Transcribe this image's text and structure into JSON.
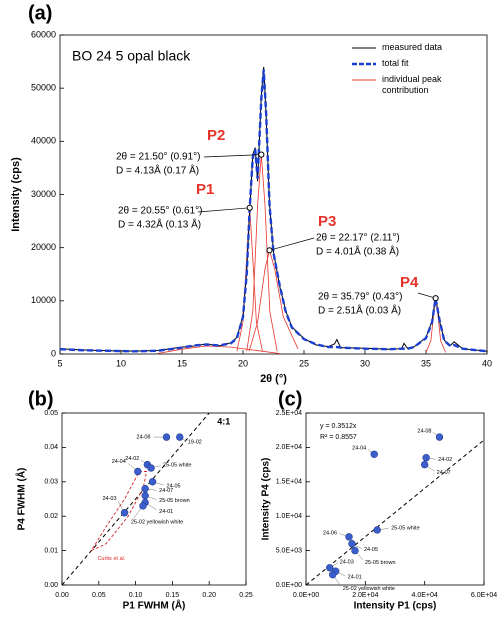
{
  "chart_data": [
    {
      "type": "line",
      "panel": "(a)",
      "title": "BO 24 5 opal black",
      "xlabel": "2θ (°)",
      "ylabel": "Intensity (cps)",
      "xlim": [
        5,
        40
      ],
      "ylim": [
        0,
        60000
      ],
      "xticks": [
        5,
        10,
        15,
        20,
        25,
        30,
        35,
        40
      ],
      "yticks": [
        0,
        10000,
        20000,
        30000,
        40000,
        50000,
        60000
      ],
      "x": [
        5,
        7,
        9,
        11,
        13,
        15,
        16,
        17,
        18,
        19,
        19.5,
        20,
        20.3,
        20.55,
        20.8,
        21,
        21.2,
        21.5,
        21.7,
        21.9,
        22.17,
        22.5,
        23,
        23.5,
        24,
        25,
        26,
        27,
        27.5,
        27.7,
        28,
        30,
        32,
        33,
        33.2,
        33.5,
        34,
        35,
        35.5,
        35.79,
        36.1,
        36.5,
        37,
        37.3,
        38,
        40
      ],
      "series": [
        {
          "name": "measured data",
          "color": "#000000",
          "values": [
            1000,
            750,
            600,
            550,
            650,
            1300,
            1500,
            1900,
            1500,
            2100,
            3100,
            7200,
            15500,
            27000,
            37500,
            38800,
            32500,
            48500,
            54000,
            44500,
            28200,
            19200,
            12800,
            8100,
            5100,
            2900,
            1700,
            1400,
            1900,
            2700,
            1200,
            1100,
            900,
            1000,
            2000,
            1000,
            1300,
            3100,
            6200,
            10700,
            6300,
            2600,
            1600,
            2300,
            1000,
            500
          ]
        },
        {
          "name": "total fit",
          "color": "#1b3fd0",
          "dashed": true,
          "values": [
            900,
            700,
            600,
            500,
            600,
            1200,
            1600,
            1800,
            1600,
            2000,
            3000,
            7000,
            15000,
            27500,
            37000,
            38500,
            33000,
            48000,
            53500,
            45000,
            28000,
            19000,
            13000,
            8000,
            5000,
            2800,
            1800,
            1300,
            1300,
            1300,
            1200,
            1000,
            900,
            1000,
            1000,
            1000,
            1300,
            3000,
            6000,
            10500,
            6500,
            2500,
            1500,
            1700,
            1000,
            500
          ]
        }
      ],
      "peak_curves": {
        "name": "individual peak contribution",
        "color": "#e8332a",
        "curves": [
          {
            "x": [
              13,
              15,
              17,
              19,
              21,
              23
            ],
            "values": [
              100,
              900,
              1500,
              1300,
              700,
              100
            ]
          },
          {
            "x": [
              19.5,
              20,
              20.3,
              20.55,
              20.8,
              21.1,
              21.6
            ],
            "values": [
              500,
              6000,
              18000,
              27500,
              18000,
              6000,
              500
            ]
          },
          {
            "x": [
              20.3,
              20.8,
              21.2,
              21.5,
              21.8,
              22.2,
              22.8
            ],
            "values": [
              500,
              8000,
              28000,
              37500,
              28000,
              8000,
              500
            ]
          },
          {
            "x": [
              20.5,
              21.2,
              21.8,
              22.17,
              22.6,
              23.3,
              24.5
            ],
            "values": [
              500,
              6000,
              16000,
              19500,
              16000,
              7000,
              1000
            ]
          },
          {
            "x": [
              35,
              35.4,
              35.65,
              35.79,
              35.95,
              36.2,
              36.6
            ],
            "values": [
              300,
              2500,
              8000,
              10500,
              8000,
              2500,
              300
            ]
          }
        ]
      },
      "annotations": [
        {
          "label": "P1",
          "x": 20.55,
          "y": 27500,
          "lines": [
            "2θ = 20.55° (0.61°)",
            "D = 4.32Å (0.13 Å)"
          ]
        },
        {
          "label": "P2",
          "x": 21.5,
          "y": 37500,
          "lines": [
            "2θ = 21.50° (0.91°)",
            "D = 4.13Å (0.17 Å)"
          ]
        },
        {
          "label": "P3",
          "x": 22.17,
          "y": 19500,
          "lines": [
            "2θ = 22.17° (2.11°)",
            "D = 4.01Å (0.38 Å)"
          ]
        },
        {
          "label": "P4",
          "x": 35.79,
          "y": 10500,
          "lines": [
            "2θ = 35.79° (0.43°)",
            "D = 2.51Å (0.03 Å)"
          ]
        }
      ]
    },
    {
      "type": "scatter",
      "panel": "(b)",
      "xlabel": "P1 FWHM (Å)",
      "ylabel": "P4 FWHM (Å)",
      "xlim": [
        0,
        0.25
      ],
      "ylim": [
        0,
        0.05
      ],
      "xticks": [
        {
          "value": 0,
          "label": "0.00"
        },
        0.05,
        {
          "value": 0.1,
          "label": "0.10"
        },
        0.15,
        {
          "value": 0.2,
          "label": "0.20"
        },
        0.25
      ],
      "yticks": [
        {
          "value": 0,
          "label": "0.00"
        },
        0.01,
        0.02,
        0.03,
        0.04,
        0.05
      ],
      "color": "#3a5fcd",
      "labels": [
        "24-08",
        "19-02",
        "24-02",
        "25-05 white",
        "24-04",
        "24-05",
        "24-07",
        "25-05 brown",
        "24-01",
        "25-02 yellowish white",
        "24-03"
      ],
      "x": [
        0.142,
        0.16,
        0.116,
        0.121,
        0.103,
        0.123,
        0.113,
        0.113,
        0.113,
        0.11,
        0.085
      ],
      "values": [
        0.043,
        0.043,
        0.035,
        0.034,
        0.033,
        0.03,
        0.028,
        0.026,
        0.024,
        0.023,
        0.021
      ],
      "reference_line": {
        "label": "4:1",
        "slope": 0.25
      },
      "region": {
        "label": "Curtis et al.",
        "color": "#d62728",
        "x": [
          0.04,
          0.06,
          0.09,
          0.11,
          0.115,
          0.105,
          0.085,
          0.06,
          0.04
        ],
        "values": [
          0.01,
          0.012,
          0.02,
          0.028,
          0.033,
          0.033,
          0.025,
          0.017,
          0.01
        ]
      }
    },
    {
      "type": "scatter",
      "panel": "(c)",
      "xlabel": "Intensity P1 (cps)",
      "ylabel": "Intensity P4 (cps)",
      "xlim": [
        0,
        60000
      ],
      "ylim": [
        0,
        25000
      ],
      "xticks": [
        {
          "value": 0,
          "label": "0.0E+00"
        },
        {
          "value": 20000,
          "label": "2.0E+04"
        },
        {
          "value": 40000,
          "label": "4.0E+04"
        },
        {
          "value": 60000,
          "label": "6.0E+04"
        }
      ],
      "yticks": [
        {
          "value": 0,
          "label": "0.0E+00"
        },
        {
          "value": 5000,
          "label": "5.0E+03"
        },
        {
          "value": 10000,
          "label": "1.0E+04"
        },
        {
          "value": 15000,
          "label": "1.5E+04"
        },
        {
          "value": 20000,
          "label": "2.0E+04"
        },
        {
          "value": 25000,
          "label": "2.5E+04"
        }
      ],
      "color": "#3a5fcd",
      "labels": [
        "24-08",
        "24-04",
        "24-02",
        "24-07",
        "25-05 white",
        "24-06",
        "24-05",
        "25-05 brown",
        "24-03",
        "24-01",
        "25-02 yellowish white"
      ],
      "x": [
        45000,
        23000,
        40500,
        40000,
        24000,
        14500,
        15500,
        16500,
        8000,
        10000,
        9000
      ],
      "values": [
        21500,
        19000,
        18500,
        17500,
        8000,
        7000,
        6000,
        5000,
        2500,
        2000,
        1500
      ],
      "fit": {
        "slope": 0.3512,
        "label": "y = 0.3512x",
        "r2_label": "R² = 0.8557"
      }
    }
  ]
}
